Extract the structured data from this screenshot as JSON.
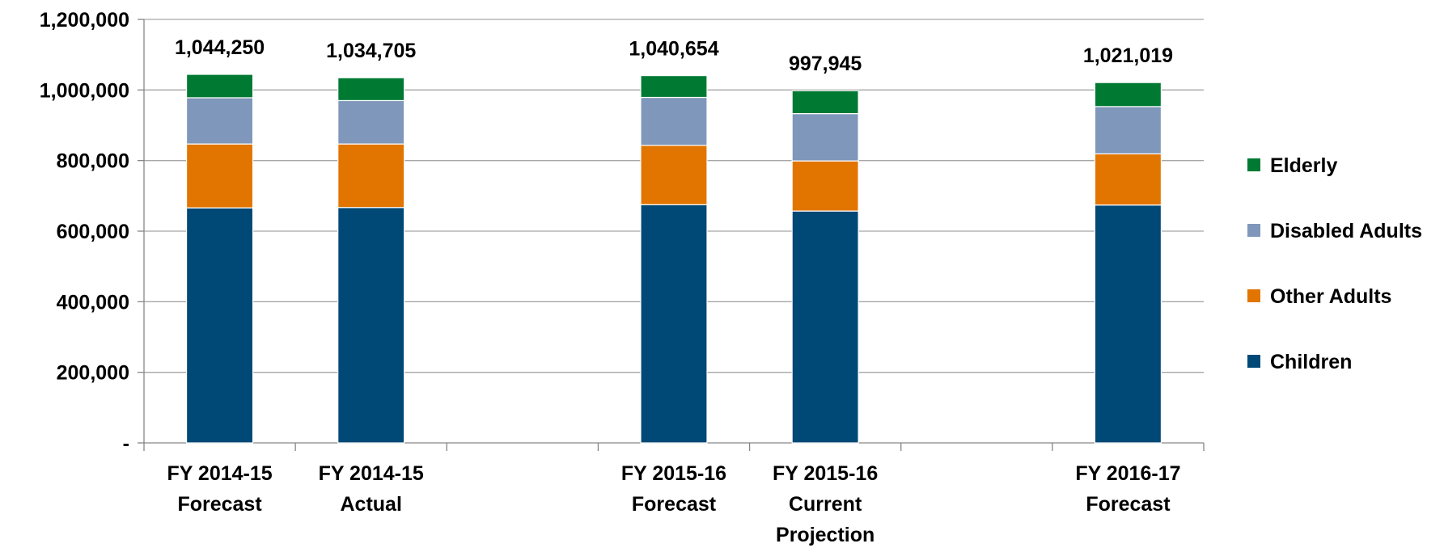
{
  "chart_data": {
    "type": "bar",
    "stacked": true,
    "title": "",
    "xlabel": "",
    "ylabel": "",
    "ylim": [
      0,
      1200000
    ],
    "yticks": [
      0,
      200000,
      400000,
      600000,
      800000,
      1000000,
      1200000
    ],
    "ytick_labels": [
      "-",
      "200,000",
      "400,000",
      "600,000",
      "800,000",
      "1,000,000",
      "1,200,000"
    ],
    "grid": true,
    "legend_position": "right",
    "slots": 7,
    "categories": [
      {
        "slot": 0,
        "label": [
          "FY 2014-15",
          "Forecast"
        ],
        "total_label": "1,044,250"
      },
      {
        "slot": 1,
        "label": [
          "FY 2014-15",
          "Actual"
        ],
        "total_label": "1,034,705"
      },
      {
        "slot": 3,
        "label": [
          "FY 2015-16",
          "Forecast"
        ],
        "total_label": "1,040,654"
      },
      {
        "slot": 4,
        "label": [
          "FY 2015-16",
          "Current",
          "Projection"
        ],
        "total_label": "997,945"
      },
      {
        "slot": 6,
        "label": [
          "FY 2016-17",
          "Forecast"
        ],
        "total_label": "1,021,019"
      }
    ],
    "series": [
      {
        "name": "Children",
        "color": "#004876",
        "values": [
          666000,
          667000,
          675000,
          657000,
          674000
        ]
      },
      {
        "name": "Other Adults",
        "color": "#E27500",
        "values": [
          181000,
          180000,
          168000,
          142000,
          145000
        ]
      },
      {
        "name": "Disabled Adults",
        "color": "#7F97BA",
        "values": [
          131000,
          123000,
          136000,
          134000,
          134000
        ]
      },
      {
        "name": "Elderly",
        "color": "#007A33",
        "values": [
          66250,
          64705,
          61654,
          64945,
          68019
        ]
      }
    ],
    "legend_order": [
      "Elderly",
      "Disabled Adults",
      "Other Adults",
      "Children"
    ]
  }
}
